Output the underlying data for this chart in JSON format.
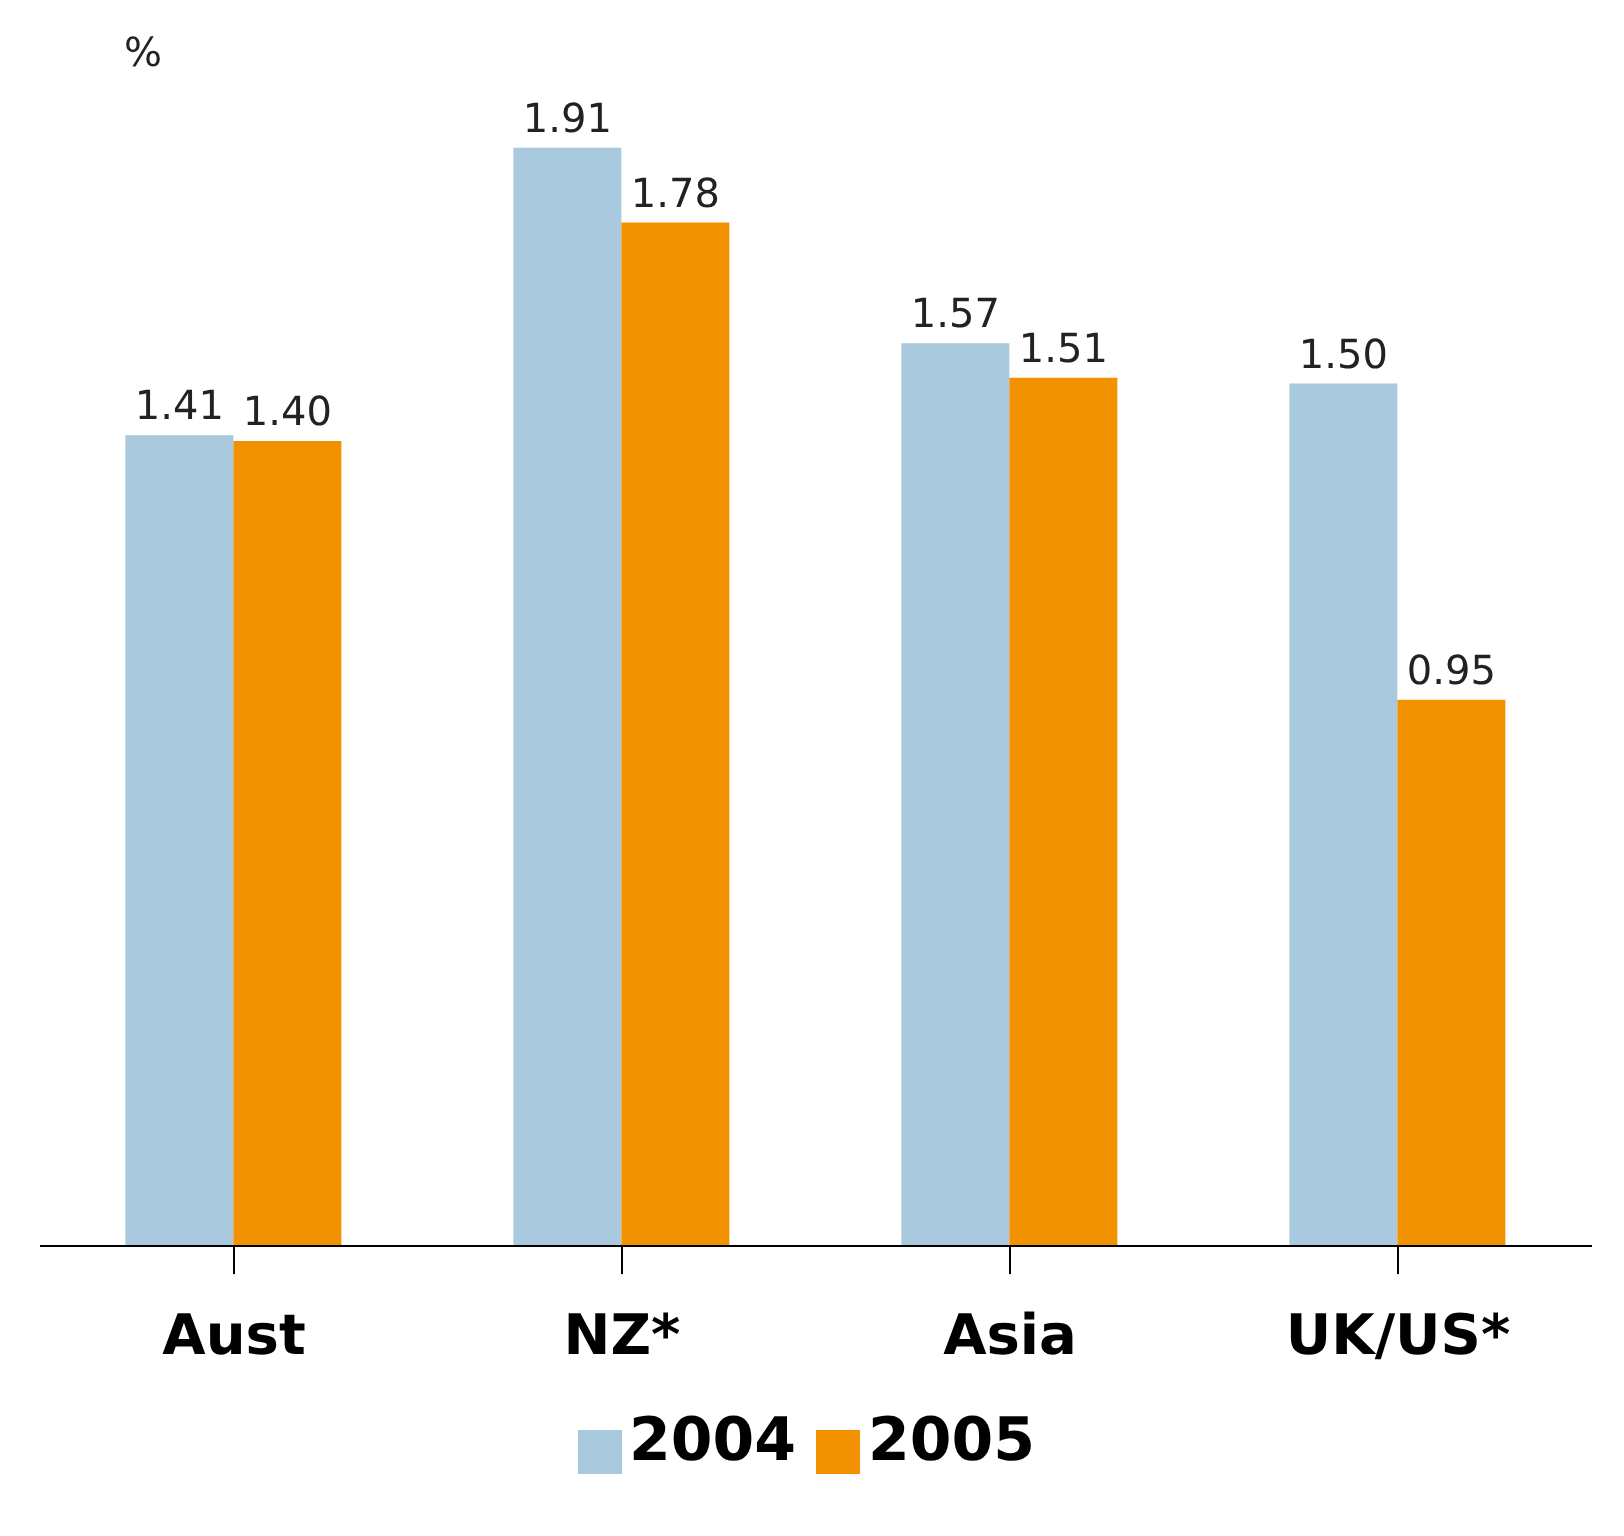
{
  "chart_data": {
    "type": "bar",
    "ylabel": "%",
    "categories": [
      "Aust",
      "NZ*",
      "Asia",
      "UK/US*"
    ],
    "series": [
      {
        "name": "2004",
        "color": "#a9c9de",
        "values": [
          1.41,
          1.91,
          1.57,
          1.5
        ],
        "value_labels": [
          "1.41",
          "1.91",
          "1.57",
          "1.50"
        ]
      },
      {
        "name": "2005",
        "color": "#f39200",
        "values": [
          1.4,
          1.78,
          1.51,
          0.95
        ],
        "value_labels": [
          "1.40",
          "1.78",
          "1.51",
          "0.95"
        ]
      }
    ],
    "tick_labels": "x",
    "legend": "bottom"
  }
}
